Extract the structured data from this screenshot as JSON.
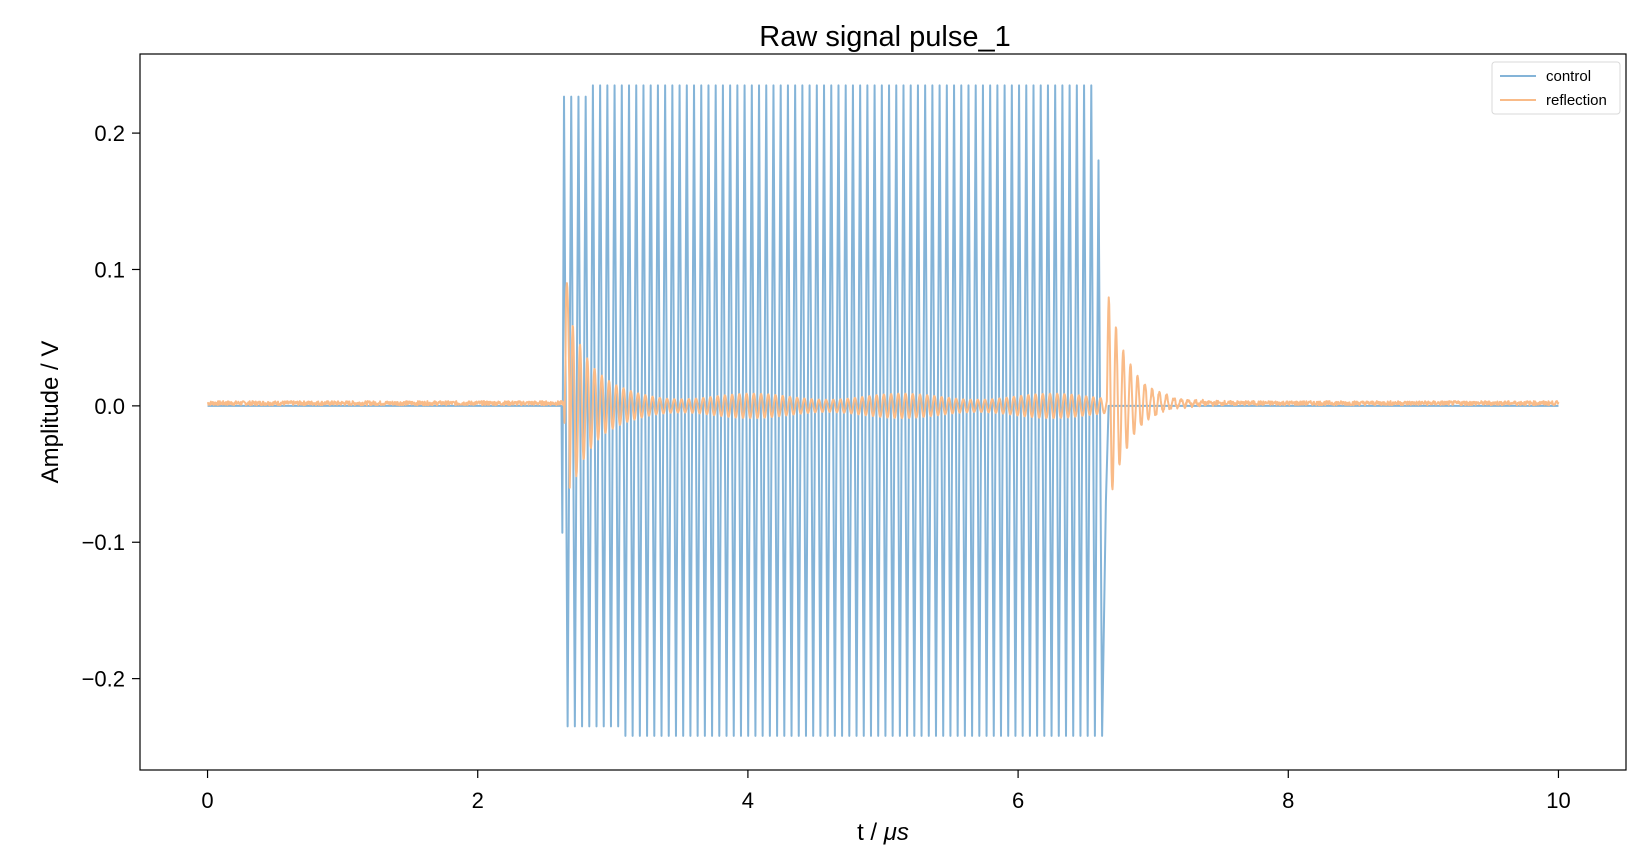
{
  "chart_data": {
    "type": "line",
    "title": "Raw signal pulse_1",
    "xlabel_text": "t / ",
    "xlabel_unit": "μs",
    "ylabel": "Amplitude / V",
    "xlim": [
      -0.5,
      10.5
    ],
    "ylim": [
      -0.267,
      0.258
    ],
    "xticks": [
      {
        "value": 0,
        "label": "0"
      },
      {
        "value": 2,
        "label": "2"
      },
      {
        "value": 4,
        "label": "4"
      },
      {
        "value": 6,
        "label": "6"
      },
      {
        "value": 8,
        "label": "8"
      },
      {
        "value": 10,
        "label": "10"
      }
    ],
    "yticks": [
      {
        "value": 0.2,
        "label": "0.2"
      },
      {
        "value": 0.1,
        "label": "0.1"
      },
      {
        "value": 0.0,
        "label": "0.0"
      },
      {
        "value": -0.1,
        "label": "−0.1"
      },
      {
        "value": -0.2,
        "label": "−0.2"
      }
    ],
    "grid": false,
    "legend_position": "top-right",
    "series": [
      {
        "name": "control",
        "color": "#84b4d8",
        "t_range": [
          0,
          10
        ],
        "baseline": 0.0,
        "pulse_start": 2.62,
        "pulse_end": 6.63,
        "cycles": 75,
        "amplitude_max": 0.235,
        "amplitude_min": -0.242,
        "initial_dip": -0.093,
        "final_peak": 0.18
      },
      {
        "name": "reflection",
        "color": "#f9bb88",
        "t_range": [
          0,
          10
        ],
        "baseline": 0.002,
        "noise": 0.0015,
        "onset": 2.64,
        "onset_peak": 0.09,
        "onset_trough": -0.066,
        "steady_amplitude": 0.009,
        "offset": 6.66,
        "offset_peak": 0.09,
        "offset_trough": -0.072,
        "ringing_decay_us": 0.16
      }
    ]
  }
}
